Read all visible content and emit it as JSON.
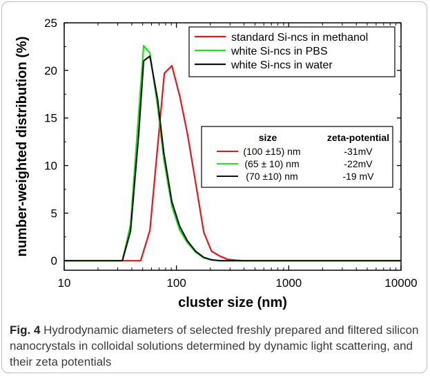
{
  "chart_data": {
    "type": "line",
    "xscale": "log",
    "xlim": [
      10,
      10000
    ],
    "ylim": [
      -1,
      25
    ],
    "xticks": [
      10,
      100,
      1000,
      10000
    ],
    "xtick_labels": [
      "10",
      "100",
      "1000",
      "10000"
    ],
    "yticks": [
      0,
      5,
      10,
      15,
      20,
      25
    ],
    "ytick_labels": [
      "0",
      "5",
      "10",
      "15",
      "20",
      "25"
    ],
    "xlabel": "cluster size (nm)",
    "ylabel": "number-weighted distribution (%)",
    "grid": false,
    "legend_position": "top-right",
    "series": [
      {
        "name": "standard Si-ncs in methanol",
        "color": "#e8141b",
        "x": [
          10,
          48,
          58,
          78,
          91,
          107,
          125,
          148,
          175,
          205,
          242,
          285,
          336,
          400,
          10000
        ],
        "y": [
          0,
          0,
          3.2,
          19.7,
          20.5,
          17.3,
          13.4,
          8.2,
          3.0,
          1.0,
          0.5,
          0.15,
          0.05,
          0,
          0
        ]
      },
      {
        "name": "white Si-ncs in PBS",
        "color": "#19e619",
        "x": [
          10,
          33,
          39,
          46,
          51,
          58,
          68,
          77,
          91,
          107,
          125,
          148,
          175,
          205,
          242,
          10000
        ],
        "y": [
          0,
          0,
          3.8,
          15.4,
          22.6,
          21.8,
          16.2,
          10.7,
          5.7,
          3.2,
          1.9,
          0.9,
          0.3,
          0.1,
          0,
          0
        ]
      },
      {
        "name": "white Si-ncs in water",
        "color": "#111111",
        "x": [
          10,
          33,
          39,
          46,
          51,
          58,
          68,
          77,
          91,
          107,
          125,
          148,
          175,
          205,
          242,
          10000
        ],
        "y": [
          0,
          0,
          3.1,
          13.2,
          21.0,
          21.5,
          16.9,
          11.4,
          6.2,
          3.6,
          2.1,
          1.0,
          0.35,
          0.1,
          0,
          0
        ]
      }
    ],
    "table": {
      "headers": [
        "size",
        "zeta-potential"
      ],
      "rows": [
        {
          "color": "#e8141b",
          "size": "(100 ±15) nm",
          "zeta": "-31mV"
        },
        {
          "color": "#19e619",
          "size": "(65 ± 10) nm",
          "zeta": "-22mV"
        },
        {
          "color": "#111111",
          "size": "(70  ±10) nm",
          "zeta": "-19 mV"
        }
      ]
    }
  },
  "caption": {
    "label": "Fig. 4",
    "text": " Hydrodynamic diameters of selected freshly prepared and filtered silicon nanocrystals in colloidal solutions determined by dynamic light scattering, and their zeta potentials"
  }
}
